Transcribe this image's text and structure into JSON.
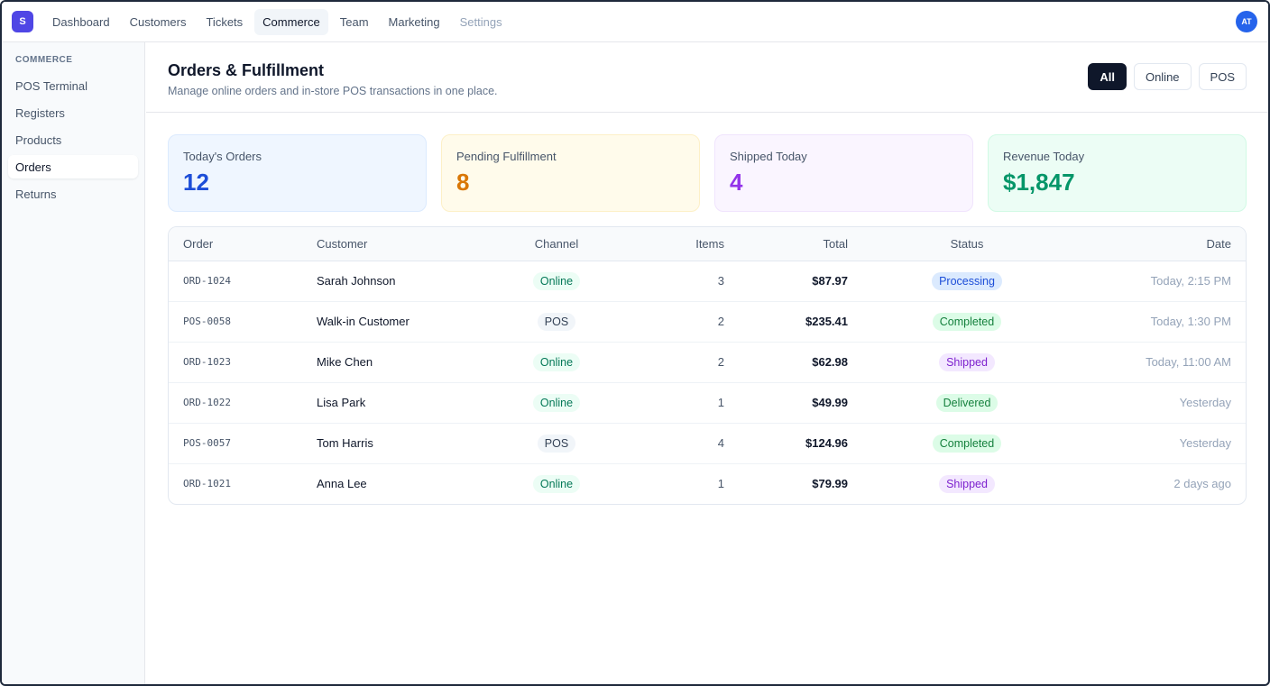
{
  "app": {
    "logo_letter": "S",
    "avatar_initials": "AT"
  },
  "nav": {
    "items": [
      {
        "label": "Dashboard"
      },
      {
        "label": "Customers"
      },
      {
        "label": "Tickets"
      },
      {
        "label": "Commerce",
        "active": true
      },
      {
        "label": "Team"
      },
      {
        "label": "Marketing"
      },
      {
        "label": "Settings"
      }
    ]
  },
  "sidebar": {
    "section": "COMMERCE",
    "items": [
      {
        "label": "POS Terminal"
      },
      {
        "label": "Registers"
      },
      {
        "label": "Products"
      },
      {
        "label": "Orders",
        "active": true
      },
      {
        "label": "Returns"
      }
    ]
  },
  "header": {
    "title": "Orders & Fulfillment",
    "subtitle": "Manage online orders and in-store POS transactions in one place.",
    "filters": [
      "All",
      "Online",
      "POS"
    ],
    "active_filter": "All"
  },
  "stats": [
    {
      "label": "Today's Orders",
      "value": "12"
    },
    {
      "label": "Pending Fulfillment",
      "value": "8"
    },
    {
      "label": "Shipped Today",
      "value": "4"
    },
    {
      "label": "Revenue Today",
      "value": "$1,847"
    }
  ],
  "table": {
    "columns": [
      "Order",
      "Customer",
      "Channel",
      "Items",
      "Total",
      "Status",
      "Date"
    ],
    "rows": [
      {
        "order": "ORD-1024",
        "customer": "Sarah Johnson",
        "channel": "Online",
        "items": "3",
        "total": "$87.97",
        "status": "Processing",
        "date": "Today, 2:15 PM"
      },
      {
        "order": "POS-0058",
        "customer": "Walk-in Customer",
        "channel": "POS",
        "items": "2",
        "total": "$235.41",
        "status": "Completed",
        "date": "Today, 1:30 PM"
      },
      {
        "order": "ORD-1023",
        "customer": "Mike Chen",
        "channel": "Online",
        "items": "2",
        "total": "$62.98",
        "status": "Shipped",
        "date": "Today, 11:00 AM"
      },
      {
        "order": "ORD-1022",
        "customer": "Lisa Park",
        "channel": "Online",
        "items": "1",
        "total": "$49.99",
        "status": "Delivered",
        "date": "Yesterday"
      },
      {
        "order": "POS-0057",
        "customer": "Tom Harris",
        "channel": "POS",
        "items": "4",
        "total": "$124.96",
        "status": "Completed",
        "date": "Yesterday"
      },
      {
        "order": "ORD-1021",
        "customer": "Anna Lee",
        "channel": "Online",
        "items": "1",
        "total": "$79.99",
        "status": "Shipped",
        "date": "2 days ago"
      }
    ]
  },
  "colors": {
    "brand": "#4f46e5",
    "avatar": "#2563eb",
    "stat_orders": "#1d4ed8",
    "stat_pending": "#d97706",
    "stat_shipped": "#9333ea",
    "stat_revenue": "#059669"
  }
}
